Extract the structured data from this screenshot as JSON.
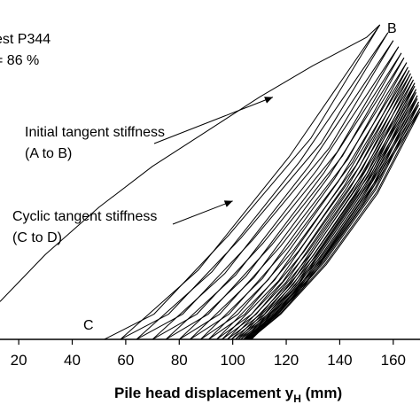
{
  "chart_data": {
    "type": "line",
    "title_lines": [
      "est P344",
      "= 86 %"
    ],
    "xlabel": "Pile head displacement y",
    "xlabel_sub": "H",
    "xlabel_unit": " (mm)",
    "ylabel": "",
    "xlim": [
      13,
      170
    ],
    "x_ticks": [
      20,
      40,
      60,
      80,
      100,
      120,
      140,
      160
    ],
    "grid": false,
    "annotations": [
      {
        "text_lines": [
          "Initial tangent stiffness",
          "(A to B)"
        ],
        "arrow_to": [
          115,
          0.77
        ]
      },
      {
        "text_lines": [
          "Cyclic tangent stiffness",
          "(C to D)"
        ],
        "arrow_to": [
          100,
          0.44
        ]
      }
    ],
    "point_labels": {
      "B": "B",
      "C": "C"
    },
    "series": [
      {
        "role": "initial-loading",
        "x": [
          13,
          30,
          50,
          70,
          90,
          110,
          130,
          150,
          155
        ],
        "y": [
          0.12,
          0.27,
          0.42,
          0.55,
          0.66,
          0.77,
          0.87,
          0.96,
          1.0
        ]
      }
    ],
    "cycles": {
      "count": 22,
      "start_x": [
        52,
        58,
        64,
        70,
        75,
        80,
        84,
        88,
        91,
        94,
        96,
        98,
        99.5,
        101,
        102,
        103,
        104,
        104.5,
        105,
        105.5,
        106,
        106.5
      ],
      "peak_x": [
        155,
        158,
        160,
        162,
        163,
        164,
        165,
        165.5,
        166,
        166.5,
        167,
        167.5,
        168,
        168,
        168.5,
        168.5,
        169,
        169,
        169.5,
        169.5,
        170,
        170
      ],
      "peak_y": [
        1.0,
        0.975,
        0.95,
        0.93,
        0.91,
        0.895,
        0.88,
        0.865,
        0.855,
        0.845,
        0.835,
        0.825,
        0.815,
        0.805,
        0.795,
        0.785,
        0.775,
        0.765,
        0.755,
        0.745,
        0.735,
        0.725
      ],
      "unload_min_y": 0.07
    }
  }
}
